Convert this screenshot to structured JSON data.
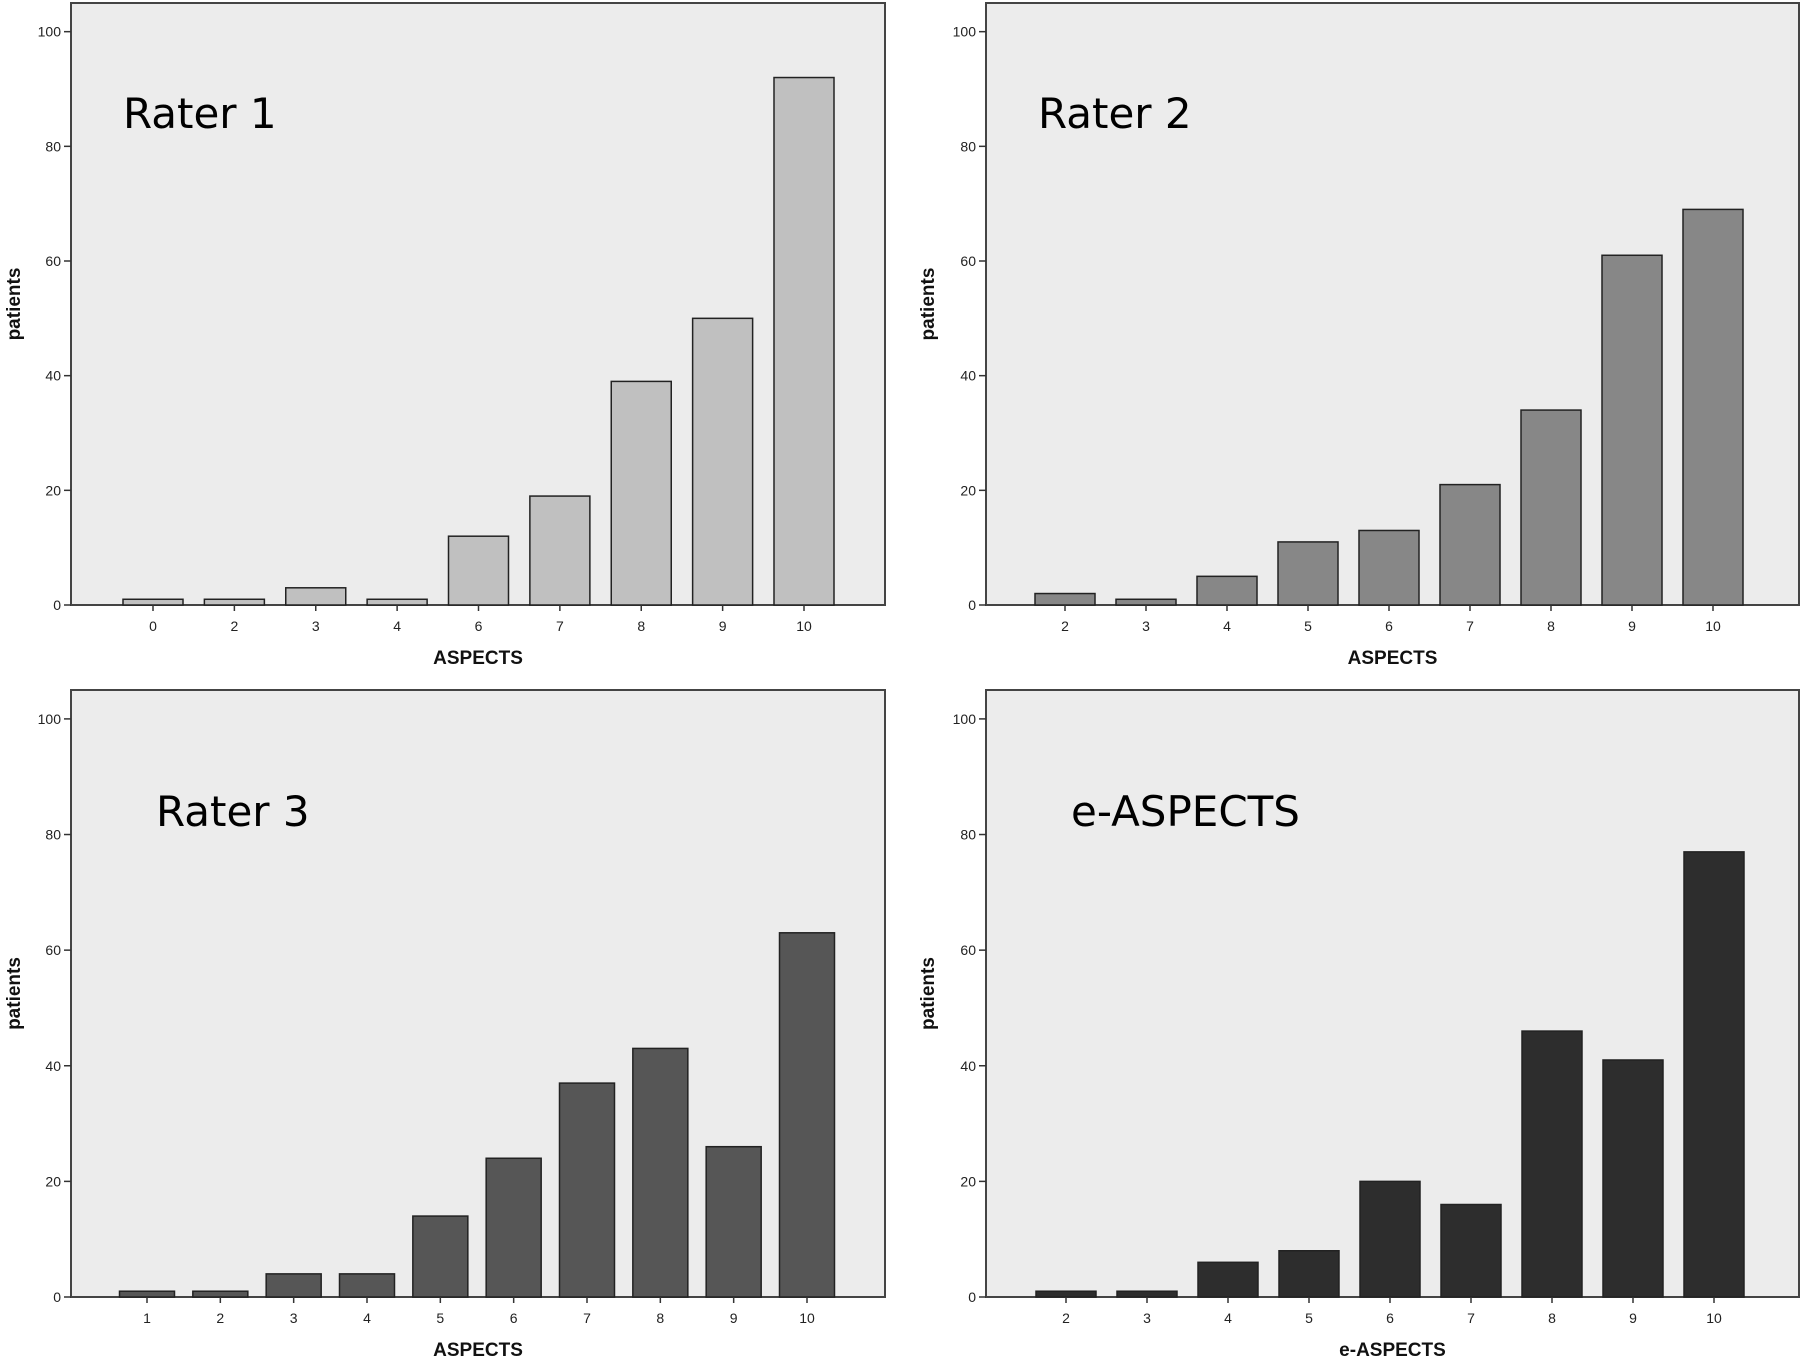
{
  "chart_data": [
    {
      "type": "bar",
      "title": "Rater 1",
      "xlabel": "ASPECTS",
      "ylabel": "patients",
      "ylim": [
        0,
        105
      ],
      "yticks": [
        0,
        20,
        40,
        60,
        80,
        100
      ],
      "categories": [
        "0",
        "2",
        "3",
        "4",
        "6",
        "7",
        "8",
        "9",
        "10"
      ],
      "values": [
        1,
        1,
        3,
        1,
        12,
        19,
        39,
        50,
        92
      ],
      "bar_color": "#c0c0c0",
      "grid": false
    },
    {
      "type": "bar",
      "title": "Rater 2",
      "xlabel": "ASPECTS",
      "ylabel": "patients",
      "ylim": [
        0,
        105
      ],
      "yticks": [
        0,
        20,
        40,
        60,
        80,
        100
      ],
      "categories": [
        "2",
        "3",
        "4",
        "5",
        "6",
        "7",
        "8",
        "9",
        "10"
      ],
      "values": [
        2,
        1,
        5,
        11,
        13,
        21,
        34,
        61,
        69
      ],
      "bar_color": "#878787",
      "grid": false
    },
    {
      "type": "bar",
      "title": "Rater 3",
      "xlabel": "ASPECTS",
      "ylabel": "patients",
      "ylim": [
        0,
        105
      ],
      "yticks": [
        0,
        20,
        40,
        60,
        80,
        100
      ],
      "categories": [
        "1",
        "2",
        "3",
        "4",
        "5",
        "6",
        "7",
        "8",
        "9",
        "10"
      ],
      "values": [
        1,
        1,
        4,
        4,
        14,
        24,
        37,
        43,
        26,
        63
      ],
      "bar_color": "#565656",
      "grid": false
    },
    {
      "type": "bar",
      "title": "e-ASPECTS",
      "xlabel": "e-ASPECTS",
      "ylabel": "patients",
      "ylim": [
        0,
        105
      ],
      "yticks": [
        0,
        20,
        40,
        60,
        80,
        100
      ],
      "categories": [
        "2",
        "3",
        "4",
        "5",
        "6",
        "7",
        "8",
        "9",
        "10"
      ],
      "values": [
        1,
        1,
        6,
        8,
        20,
        16,
        46,
        41,
        77
      ],
      "bar_color": "#2d2d2d",
      "grid": false
    }
  ],
  "colors": {
    "plot_background": "#ececec",
    "frame": "#444444",
    "bar_stroke": "#222222"
  }
}
